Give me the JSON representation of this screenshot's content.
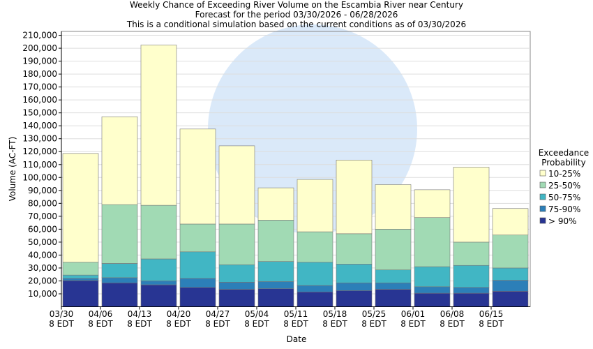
{
  "chart_data": {
    "type": "stacked-bar",
    "title": "Weekly Chance of Exceeding River Volume on the Escambia River near Century",
    "subtitle": [
      "Forecast for the period 03/30/2026 - 06/28/2026",
      "This is a conditional simulation based on the current conditions as of 03/30/2026"
    ],
    "x_label": "Date",
    "y_label": "Volume (AC-FT)",
    "legend_title": "Exceedance Probability",
    "legend": "right",
    "categories": [
      "03/30\n8 EDT",
      "04/06\n8 EDT",
      "04/13\n8 EDT",
      "04/20\n8 EDT",
      "04/27\n8 EDT",
      "05/04\n8 EDT",
      "05/11\n8 EDT",
      "05/18\n8 EDT",
      "05/25\n8 EDT",
      "06/01\n8 EDT",
      "06/08\n8 EDT",
      "06/15\n8 EDT"
    ],
    "series": [
      {
        "name": "> 90%",
        "color": "#283593",
        "values": [
          20300,
          18500,
          17000,
          15000,
          13500,
          14000,
          11500,
          12500,
          13500,
          10500,
          10500,
          12000
        ]
      },
      {
        "name": "75-90%",
        "color": "#2c7fb8",
        "values": [
          1700,
          4000,
          3000,
          7000,
          5500,
          5500,
          5000,
          6000,
          5000,
          5000,
          4500,
          8500
        ]
      },
      {
        "name": "50-75%",
        "color": "#41b6c4",
        "values": [
          2500,
          11000,
          17000,
          20500,
          13500,
          15500,
          18000,
          14500,
          10000,
          15500,
          17000,
          9500
        ]
      },
      {
        "name": "25-50%",
        "color": "#a1dab4",
        "values": [
          10000,
          45500,
          41500,
          21500,
          31500,
          32000,
          23500,
          23500,
          31500,
          38000,
          18000,
          25500
        ]
      },
      {
        "name": "10-25%",
        "color": "#ffffcc",
        "values": [
          84100,
          68000,
          124000,
          73500,
          60500,
          25000,
          40500,
          57000,
          34500,
          21500,
          58000,
          20500
        ]
      }
    ],
    "ylim": [
      0,
      213000
    ],
    "yticks": [
      {
        "value": 10000,
        "label": "10,000"
      },
      {
        "value": 20000,
        "label": "20,000"
      },
      {
        "value": 30000,
        "label": "30,000"
      },
      {
        "value": 40000,
        "label": "40,000"
      },
      {
        "value": 50000,
        "label": "50,000"
      },
      {
        "value": 60000,
        "label": "60,000"
      },
      {
        "value": 70000,
        "label": "70,000"
      },
      {
        "value": 80000,
        "label": "80,000"
      },
      {
        "value": 90000,
        "label": "90,000"
      },
      {
        "value": 100000,
        "label": "100,000"
      },
      {
        "value": 110000,
        "label": "110,000"
      },
      {
        "value": 120000,
        "label": "120,000"
      },
      {
        "value": 130000,
        "label": "130,000"
      },
      {
        "value": 140000,
        "label": "140,000"
      },
      {
        "value": 150000,
        "label": "150,000"
      },
      {
        "value": 160000,
        "label": "160,000"
      },
      {
        "value": 170000,
        "label": "170,000"
      },
      {
        "value": 180000,
        "label": "180,000"
      },
      {
        "value": 190000,
        "label": "190,000"
      },
      {
        "value": 200000,
        "label": "200,000"
      },
      {
        "value": 210000,
        "label": "210,000"
      }
    ],
    "grid": true
  }
}
